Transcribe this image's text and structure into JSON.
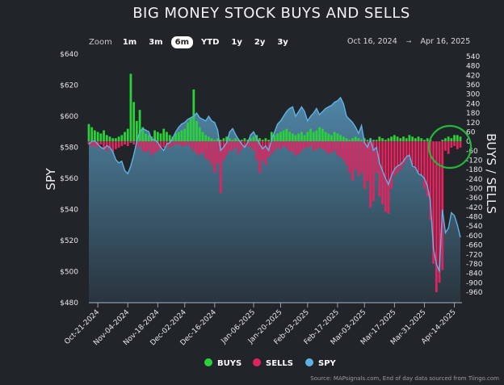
{
  "title": "BIG MONEY STOCK BUYS AND SELLS",
  "zoom": {
    "label": "Zoom",
    "buttons": [
      "1m",
      "3m",
      "6m",
      "YTD",
      "1y",
      "2y",
      "3y"
    ],
    "active": "6m"
  },
  "range": {
    "from": "Oct 16, 2024",
    "arrow": "→",
    "to": "Apr 16, 2025"
  },
  "source": "Source: MAPsignals.com, End of day data sourced from Tiingo.com",
  "colors": {
    "buys": "#2bd13b",
    "sells": "#e0245e",
    "spy": "#5eb3e4",
    "annotation": "#23b83a"
  },
  "chart_data": {
    "type": "bar+area",
    "title": "BIG MONEY STOCK BUYS AND SELLS",
    "ylabel_left": "SPY",
    "ylabel_right": "BUYS / SELLS",
    "ylim_left": [
      480,
      640
    ],
    "yticks_left": [
      "$640",
      "$620",
      "$600",
      "$580",
      "$560",
      "$540",
      "$520",
      "$500",
      "$480"
    ],
    "ylim_right": [
      -960,
      540
    ],
    "yticks_right": [
      "540",
      "480",
      "420",
      "360",
      "300",
      "240",
      "180",
      "120",
      "60",
      "0",
      "-60",
      "-120",
      "-180",
      "-240",
      "-300",
      "-360",
      "-420",
      "-480",
      "-540",
      "-600",
      "-660",
      "-720",
      "-780",
      "-840",
      "-900",
      "-960"
    ],
    "xticks": [
      {
        "label": "Oct-21-2024",
        "index": 3
      },
      {
        "label": "Nov-04-2024",
        "index": 13
      },
      {
        "label": "Nov-18-2024",
        "index": 23
      },
      {
        "label": "Dec-02-2024",
        "index": 32
      },
      {
        "label": "Dec-16-2024",
        "index": 42
      },
      {
        "label": "Jan-06-2025",
        "index": 55
      },
      {
        "label": "Jan-20-2025",
        "index": 64
      },
      {
        "label": "Feb-03-2025",
        "index": 73
      },
      {
        "label": "Feb-17-2025",
        "index": 83
      },
      {
        "label": "Mar-03-2025",
        "index": 92
      },
      {
        "label": "Mar-17-2025",
        "index": 102
      },
      {
        "label": "Mar-31-2025",
        "index": 112
      },
      {
        "label": "Apr-14-2025",
        "index": 122
      }
    ],
    "legend": [
      "BUYS",
      "SELLS",
      "SPY"
    ],
    "legend_position": "bottom",
    "annotation": "circle around latest buys/sells (Apr 2025)",
    "spy": [
      582,
      584,
      584,
      582,
      580,
      579,
      581,
      580,
      577,
      572,
      570,
      571,
      565,
      563,
      568,
      575,
      584,
      590,
      592,
      591,
      590,
      585,
      585,
      583,
      580,
      578,
      582,
      583,
      586,
      590,
      593,
      595,
      596,
      598,
      599,
      600,
      602,
      599,
      598,
      597,
      600,
      597,
      596,
      591,
      578,
      580,
      583,
      590,
      592,
      588,
      585,
      582,
      580,
      583,
      588,
      590,
      586,
      582,
      579,
      581,
      578,
      585,
      590,
      595,
      597,
      600,
      603,
      605,
      606,
      600,
      603,
      606,
      603,
      597,
      600,
      602,
      605,
      601,
      603,
      605,
      606,
      607,
      609,
      610,
      612,
      608,
      600,
      598,
      596,
      593,
      589,
      594,
      583,
      580,
      585,
      578,
      580,
      570,
      565,
      560,
      556,
      562,
      566,
      568,
      569,
      571,
      574,
      575,
      568,
      567,
      563,
      562,
      560,
      555,
      545,
      515,
      505,
      500,
      540,
      525,
      528,
      538,
      536,
      530,
      522
    ],
    "buys": [
      110,
      90,
      70,
      60,
      50,
      70,
      40,
      30,
      20,
      20,
      30,
      40,
      60,
      80,
      430,
      250,
      130,
      200,
      90,
      50,
      40,
      30,
      70,
      60,
      50,
      80,
      60,
      40,
      30,
      50,
      60,
      70,
      80,
      120,
      150,
      330,
      130,
      90,
      60,
      40,
      30,
      20,
      10,
      20,
      10,
      20,
      30,
      20,
      10,
      20,
      10,
      10,
      20,
      10,
      20,
      30,
      40,
      20,
      10,
      20,
      10,
      60,
      40,
      50,
      60,
      70,
      80,
      60,
      50,
      40,
      50,
      60,
      40,
      60,
      80,
      60,
      70,
      90,
      80,
      60,
      50,
      40,
      60,
      50,
      40,
      30,
      20,
      10,
      20,
      30,
      20,
      10,
      20,
      10,
      20,
      10,
      10,
      30,
      20,
      10,
      20,
      30,
      40,
      30,
      20,
      30,
      20,
      40,
      30,
      20,
      30,
      20,
      10,
      20,
      10,
      0,
      0,
      0,
      10,
      20,
      30,
      20,
      40,
      40,
      30
    ],
    "sells": [
      -20,
      -30,
      -30,
      -40,
      -20,
      -50,
      -60,
      -40,
      -70,
      -50,
      -40,
      -30,
      -20,
      -30,
      -10,
      -20,
      -40,
      -30,
      -60,
      -70,
      -60,
      -90,
      -70,
      -60,
      -50,
      -40,
      -30,
      -40,
      -30,
      -20,
      -20,
      -30,
      -30,
      -20,
      -40,
      -60,
      -80,
      -90,
      -70,
      -110,
      -120,
      -150,
      -200,
      -140,
      -330,
      -120,
      -90,
      -60,
      -60,
      -40,
      -80,
      -50,
      -40,
      -30,
      -40,
      -60,
      -120,
      -200,
      -120,
      -150,
      -100,
      -80,
      -60,
      -40,
      -50,
      -30,
      -40,
      -60,
      -70,
      -90,
      -80,
      -60,
      -40,
      -40,
      -30,
      -60,
      -50,
      -40,
      -50,
      -60,
      -80,
      -70,
      -60,
      -90,
      -100,
      -120,
      -150,
      -200,
      -250,
      -180,
      -220,
      -200,
      -300,
      -250,
      -420,
      -380,
      -200,
      -350,
      -400,
      -450,
      -460,
      -300,
      -220,
      -200,
      -180,
      -150,
      -120,
      -100,
      -150,
      -180,
      -200,
      -220,
      -300,
      -350,
      -500,
      -780,
      -960,
      -900,
      -820,
      -60,
      -80,
      -40,
      -30,
      -50,
      -40
    ]
  }
}
